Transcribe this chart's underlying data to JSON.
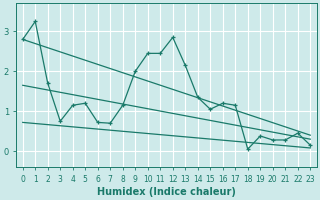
{
  "title": "",
  "xlabel": "Humidex (Indice chaleur)",
  "ylabel": "",
  "bg_color": "#ceeaea",
  "grid_color": "#ffffff",
  "line_color": "#1a7a6a",
  "x_data": [
    0,
    1,
    2,
    3,
    4,
    5,
    6,
    7,
    8,
    9,
    10,
    11,
    12,
    13,
    14,
    15,
    16,
    17,
    18,
    19,
    20,
    21,
    22,
    23
  ],
  "y_main": [
    2.8,
    3.25,
    1.7,
    0.75,
    1.15,
    1.2,
    0.72,
    0.7,
    1.15,
    2.0,
    2.45,
    2.45,
    2.85,
    2.15,
    1.35,
    1.05,
    1.2,
    1.15,
    0.05,
    0.38,
    0.28,
    0.28,
    0.45,
    0.15
  ],
  "trend1_x": [
    0,
    23
  ],
  "trend1_y": [
    2.8,
    0.4
  ],
  "trend2_x": [
    0,
    23
  ],
  "trend2_y": [
    1.65,
    0.3
  ],
  "trend3_x": [
    0,
    23
  ],
  "trend3_y": [
    0.72,
    0.08
  ],
  "xlim": [
    -0.5,
    23.5
  ],
  "ylim": [
    -0.4,
    3.7
  ],
  "yticks": [
    0,
    1,
    2,
    3
  ],
  "xticks": [
    0,
    1,
    2,
    3,
    4,
    5,
    6,
    7,
    8,
    9,
    10,
    11,
    12,
    13,
    14,
    15,
    16,
    17,
    18,
    19,
    20,
    21,
    22,
    23
  ],
  "tick_fontsize": 5.5,
  "label_fontsize": 7
}
